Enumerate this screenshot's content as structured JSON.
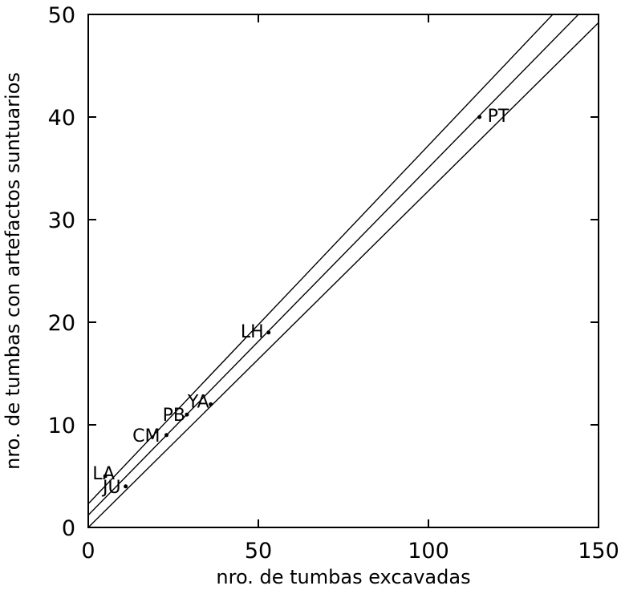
{
  "chart_data": {
    "type": "scatter",
    "title": "",
    "xlabel": "nro. de tumbas excavadas",
    "ylabel": "nro. de tumbas con artefactos suntuarios",
    "xlim": [
      0,
      150
    ],
    "ylim": [
      0,
      50
    ],
    "xticks": [
      0,
      50,
      100,
      150
    ],
    "yticks": [
      0,
      10,
      20,
      30,
      40,
      50
    ],
    "xtick_labels": [
      "0",
      "50",
      "100",
      "150"
    ],
    "ytick_labels": [
      "0",
      "10",
      "20",
      "30",
      "40",
      "50"
    ],
    "grid": false,
    "points": [
      {
        "label": "PT",
        "x": 115,
        "y": 40
      },
      {
        "label": "LH",
        "x": 53,
        "y": 19
      },
      {
        "label": "YA",
        "x": 36,
        "y": 12
      },
      {
        "label": "PB",
        "x": 29,
        "y": 11
      },
      {
        "label": "CM",
        "x": 23,
        "y": 9
      },
      {
        "label": "LA",
        "x": 5,
        "y": 5
      },
      {
        "label": "JU",
        "x": 11,
        "y": 4
      }
    ],
    "lines": [
      {
        "x": [
          0,
          150
        ],
        "y": [
          2.3,
          54.7
        ]
      },
      {
        "x": [
          0,
          150
        ],
        "y": [
          1.2,
          52.0
        ]
      },
      {
        "x": [
          0,
          150
        ],
        "y": [
          0.0,
          49.2
        ]
      }
    ]
  }
}
